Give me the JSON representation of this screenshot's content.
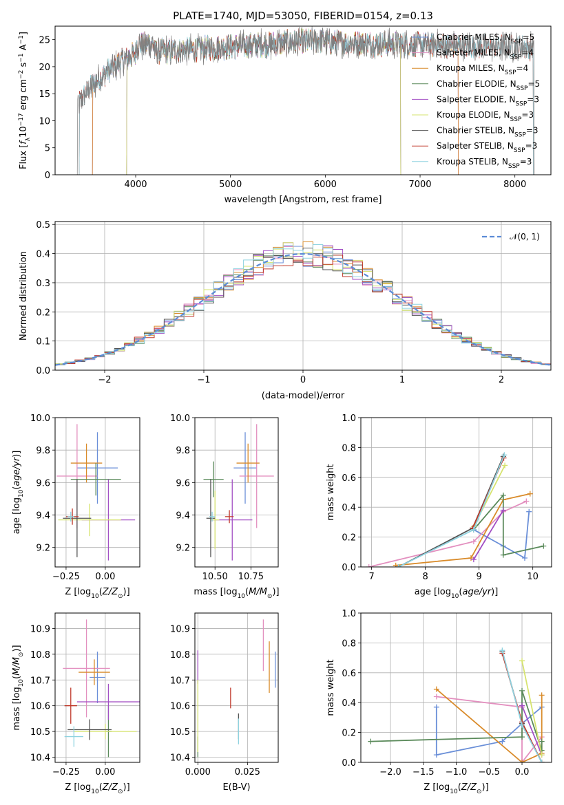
{
  "colors": {
    "Chabrier MILES": "#6a8fd8",
    "Salpeter MILES": "#e38fbf",
    "Kroupa MILES": "#d98b2a",
    "Chabrier ELODIE": "#5a8a5a",
    "Salpeter ELODIE": "#a24fc4",
    "Kroupa ELODIE": "#d6e36e",
    "Chabrier STELIB": "#555555",
    "Salpeter STELIB": "#c0392b",
    "Kroupa STELIB": "#8fd3e0",
    "gauss": "#5b8bd6"
  },
  "chart_data": [
    {
      "id": "spectrum",
      "type": "line",
      "title": "PLATE=1740, MJD=53050, FIBERID=0154, z=0.13",
      "xlabel": "wavelength [Angstrom, rest frame]",
      "ylabel": "Flux [fλ10⁻¹⁷ erg cm⁻² s⁻¹ A⁻¹]",
      "xlim": [
        3150,
        8380
      ],
      "ylim": [
        0,
        27.5
      ],
      "xticks": [
        4000,
        5000,
        6000,
        7000,
        8000
      ],
      "yticks": [
        0,
        5,
        10,
        15,
        20,
        25
      ],
      "legend_position": "upper right",
      "legend": [
        {
          "base": "Chabrier MILES, N",
          "sub": "SSP",
          "tail": "=5"
        },
        {
          "base": "Salpeter MILES, N",
          "sub": "SSP",
          "tail": "=4"
        },
        {
          "base": "Kroupa MILES, N",
          "sub": "SSP",
          "tail": "=4"
        },
        {
          "base": "Chabrier ELODIE, N",
          "sub": "SSP",
          "tail": "=5"
        },
        {
          "base": "Salpeter ELODIE, N",
          "sub": "SSP",
          "tail": "=3"
        },
        {
          "base": "Kroupa ELODIE, N",
          "sub": "SSP",
          "tail": "=3"
        },
        {
          "base": "Chabrier STELIB, N",
          "sub": "SSP",
          "tail": "=3"
        },
        {
          "base": "Salpeter STELIB, N",
          "sub": "SSP",
          "tail": "=3"
        },
        {
          "base": "Kroupa STELIB, N",
          "sub": "SSP",
          "tail": "=3"
        }
      ],
      "series": [
        {
          "name": "Chabrier MILES",
          "x_range": [
            3540,
            7410
          ]
        },
        {
          "name": "Salpeter MILES",
          "x_range": [
            3540,
            7410
          ]
        },
        {
          "name": "Kroupa MILES",
          "x_range": [
            3540,
            7410
          ]
        },
        {
          "name": "Chabrier ELODIE",
          "x_range": [
            3900,
            6800
          ]
        },
        {
          "name": "Salpeter ELODIE",
          "x_range": [
            3900,
            6800
          ]
        },
        {
          "name": "Kroupa ELODIE",
          "x_range": [
            3900,
            6800
          ]
        },
        {
          "name": "Chabrier STELIB",
          "x_range": [
            3400,
            8200
          ]
        },
        {
          "name": "Salpeter STELIB",
          "x_range": [
            3400,
            8200
          ]
        },
        {
          "name": "Kroupa STELIB",
          "x_range": [
            3400,
            8200
          ]
        },
        {
          "name": "data",
          "x_range": [
            3380,
            8210
          ]
        }
      ]
    },
    {
      "id": "residuals",
      "type": "histogram",
      "xlabel": "(data-model)/error",
      "ylabel": "Normed distribution",
      "xlim": [
        -2.5,
        2.5
      ],
      "ylim": [
        0,
        0.51
      ],
      "xticks": [
        -2,
        -1,
        0,
        1,
        2
      ],
      "xtick_labels": [
        "−2",
        "−1",
        "0",
        "1",
        "2"
      ],
      "yticks": [
        0.0,
        0.1,
        0.2,
        0.3,
        0.4,
        0.5
      ],
      "legend_position": "upper right",
      "legend_label": "𝒩(0, 1)",
      "bin_width": 0.1
    },
    {
      "id": "age_vs_Z",
      "type": "scatter_errorbar",
      "xlabel": "Z [log10(Z/Z☉)]",
      "ylabel": "age  [log10(age/yr)]",
      "xlim": [
        -0.32,
        0.22
      ],
      "ylim": [
        9.08,
        10.0
      ],
      "xticks": [
        -0.25,
        0.0
      ],
      "xtick_labels": [
        "−0.25",
        "0.00"
      ],
      "yticks": [
        9.2,
        9.4,
        9.6,
        9.8,
        10.0
      ],
      "points": [
        {
          "series": "Chabrier MILES",
          "x": -0.05,
          "y": 9.69,
          "xerr": 0.13,
          "yerr": 0.22
        },
        {
          "series": "Salpeter MILES",
          "x": -0.18,
          "y": 9.64,
          "xerr": 0.13,
          "yerr": 0.32
        },
        {
          "series": "Kroupa MILES",
          "x": -0.12,
          "y": 9.72,
          "xerr": 0.1,
          "yerr": 0.12
        },
        {
          "series": "Chabrier ELODIE",
          "x": -0.06,
          "y": 9.62,
          "xerr": 0.16,
          "yerr": 0.1
        },
        {
          "series": "Salpeter ELODIE",
          "x": 0.02,
          "y": 9.37,
          "xerr": 0.17,
          "yerr": 0.25
        },
        {
          "series": "Kroupa ELODIE",
          "x": -0.1,
          "y": 9.37,
          "xerr": 0.2,
          "yerr": 0.1
        },
        {
          "series": "Chabrier STELIB",
          "x": -0.18,
          "y": 9.38,
          "xerr": 0.09,
          "yerr": 0.24
        },
        {
          "series": "Salpeter STELIB",
          "x": -0.21,
          "y": 9.39,
          "xerr": 0.04,
          "yerr": 0.05
        },
        {
          "series": "Kroupa STELIB",
          "x": -0.22,
          "y": 9.39,
          "xerr": 0.02,
          "yerr": 0.03
        }
      ]
    },
    {
      "id": "age_vs_mass",
      "type": "scatter_errorbar",
      "xlabel": "mass [log10(M/M☉)]",
      "ylabel": "",
      "xlim": [
        10.36,
        10.94
      ],
      "ylim": [
        9.08,
        10.0
      ],
      "xticks": [
        10.5,
        10.75
      ],
      "xtick_labels": [
        "10.50",
        "10.75"
      ],
      "yticks": [
        9.2,
        9.4,
        9.6,
        9.8,
        10.0
      ],
      "points": [
        {
          "series": "Chabrier MILES",
          "x": 10.71,
          "y": 9.69,
          "xerr": 0.08,
          "yerr": 0.22
        },
        {
          "series": "Salpeter MILES",
          "x": 10.79,
          "y": 9.64,
          "xerr": 0.12,
          "yerr": 0.32
        },
        {
          "series": "Kroupa MILES",
          "x": 10.73,
          "y": 9.72,
          "xerr": 0.08,
          "yerr": 0.12
        },
        {
          "series": "Chabrier ELODIE",
          "x": 10.49,
          "y": 9.62,
          "xerr": 0.07,
          "yerr": 0.11
        },
        {
          "series": "Salpeter ELODIE",
          "x": 10.62,
          "y": 9.37,
          "xerr": 0.14,
          "yerr": 0.25
        },
        {
          "series": "Kroupa ELODIE",
          "x": 10.5,
          "y": 9.37,
          "xerr": 0.03,
          "yerr": 0.18
        },
        {
          "series": "Chabrier STELIB",
          "x": 10.47,
          "y": 9.38,
          "xerr": 0.03,
          "yerr": 0.24
        },
        {
          "series": "Salpeter STELIB",
          "x": 10.6,
          "y": 9.39,
          "xerr": 0.03,
          "yerr": 0.04
        },
        {
          "series": "Kroupa STELIB",
          "x": 10.48,
          "y": 9.39,
          "xerr": 0.02,
          "yerr": 0.03
        }
      ]
    },
    {
      "id": "weight_vs_age",
      "type": "line",
      "xlabel": "age  [log10(age/yr)]",
      "ylabel": "mass weight",
      "xlim": [
        6.8,
        10.35
      ],
      "ylim": [
        0,
        1.0
      ],
      "xticks": [
        7,
        8,
        9,
        10
      ],
      "yticks": [
        0.0,
        0.2,
        0.4,
        0.6,
        0.8,
        1.0
      ],
      "series": [
        {
          "name": "Chabrier MILES",
          "x": [
            8.9,
            9.45,
            9.85,
            9.93
          ],
          "y": [
            0.25,
            0.14,
            0.06,
            0.37
          ]
        },
        {
          "name": "Salpeter MILES",
          "x": [
            6.95,
            8.9,
            9.45,
            9.88
          ],
          "y": [
            0.0,
            0.17,
            0.37,
            0.44
          ]
        },
        {
          "name": "Kroupa MILES",
          "x": [
            7.45,
            8.85,
            9.45,
            9.95
          ],
          "y": [
            0.01,
            0.06,
            0.45,
            0.49
          ]
        },
        {
          "name": "Chabrier ELODIE",
          "x": [
            8.9,
            9.45,
            9.45,
            10.2
          ],
          "y": [
            0.25,
            0.48,
            0.08,
            0.14
          ]
        },
        {
          "name": "Salpeter ELODIE",
          "x": [
            8.9,
            9.45
          ],
          "y": [
            0.05,
            0.38
          ]
        },
        {
          "name": "Kroupa ELODIE",
          "x": [
            8.9,
            9.48
          ],
          "y": [
            0.27,
            0.68
          ]
        },
        {
          "name": "Chabrier STELIB",
          "x": [
            7.5,
            8.88,
            9.45
          ],
          "y": [
            0.0,
            0.26,
            0.74
          ]
        },
        {
          "name": "Salpeter STELIB",
          "x": [
            8.88,
            9.46
          ],
          "y": [
            0.26,
            0.73
          ]
        },
        {
          "name": "Kroupa STELIB",
          "x": [
            7.5,
            8.9,
            9.47
          ],
          "y": [
            0.0,
            0.25,
            0.75
          ]
        }
      ]
    },
    {
      "id": "mass_vs_Z",
      "type": "scatter_errorbar",
      "xlabel": "Z [log10(Z/Z☉)]",
      "ylabel": "mass [log10(M/M☉)]",
      "xlim": [
        -0.32,
        0.22
      ],
      "ylim": [
        10.38,
        10.96
      ],
      "xticks": [
        -0.25,
        0.0
      ],
      "xtick_labels": [
        "−0.25",
        "0.00"
      ],
      "yticks": [
        10.4,
        10.5,
        10.6,
        10.7,
        10.8,
        10.9
      ],
      "points": [
        {
          "series": "Chabrier MILES",
          "x": -0.05,
          "y": 10.71,
          "xerr": 0.05,
          "yerr": 0.1
        },
        {
          "series": "Salpeter MILES",
          "x": -0.12,
          "y": 10.745,
          "xerr": 0.15,
          "yerr": 0.19
        },
        {
          "series": "Kroupa MILES",
          "x": -0.07,
          "y": 10.73,
          "xerr": 0.1,
          "yerr": 0.05
        },
        {
          "series": "Chabrier ELODIE",
          "x": 0.02,
          "y": 10.5,
          "xerr": 0.02,
          "yerr": 0.1
        },
        {
          "series": "Salpeter ELODIE",
          "x": 0.02,
          "y": 10.615,
          "xerr": 0.2,
          "yerr": 0.07
        },
        {
          "series": "Kroupa ELODIE",
          "x": 0.0,
          "y": 10.5,
          "xerr": 0.2,
          "yerr": 0.03
        },
        {
          "series": "Chabrier STELIB",
          "x": -0.1,
          "y": 10.507,
          "xerr": 0.14,
          "yerr": 0.04
        },
        {
          "series": "Salpeter STELIB",
          "x": -0.22,
          "y": 10.6,
          "xerr": 0.04,
          "yerr": 0.07
        },
        {
          "series": "Kroupa STELIB",
          "x": -0.2,
          "y": 10.48,
          "xerr": 0.06,
          "yerr": 0.04
        }
      ]
    },
    {
      "id": "mass_vs_ebv",
      "type": "scatter_errorbar",
      "xlabel": "E(B-V)",
      "ylabel": "",
      "xlim": [
        -0.0015,
        0.0405
      ],
      "ylim": [
        10.38,
        10.96
      ],
      "xticks": [
        0.0,
        0.025
      ],
      "xtick_labels": [
        "0.000",
        "0.025"
      ],
      "yticks": [
        10.4,
        10.5,
        10.6,
        10.7,
        10.8,
        10.9
      ],
      "points": [
        {
          "series": "Chabrier MILES",
          "x": 0.039,
          "y": 10.74,
          "yerr": 0.07
        },
        {
          "series": "Salpeter MILES",
          "x": 0.033,
          "y": 10.835,
          "yerr": 0.1
        },
        {
          "series": "Kroupa MILES",
          "x": 0.036,
          "y": 10.75,
          "yerr": 0.1
        },
        {
          "series": "Chabrier ELODIE",
          "x": 0.0,
          "y": 10.44,
          "yerr": 0.04
        },
        {
          "series": "Salpeter ELODIE",
          "x": 0.0,
          "y": 10.75,
          "yerr": 0.065
        },
        {
          "series": "Kroupa ELODIE",
          "x": 0.0,
          "y": 10.56,
          "yerr": 0.14
        },
        {
          "series": "Chabrier STELIB",
          "x": 0.0205,
          "y": 10.52,
          "yerr": 0.05
        },
        {
          "series": "Salpeter STELIB",
          "x": 0.0165,
          "y": 10.63,
          "yerr": 0.04
        },
        {
          "series": "Kroupa STELIB",
          "x": 0.0205,
          "y": 10.5,
          "yerr": 0.05
        }
      ]
    },
    {
      "id": "weight_vs_Z",
      "type": "line",
      "xlabel": "Z [log10(Z/Z☉)]",
      "ylabel": "mass weight",
      "xlim": [
        -2.45,
        0.45
      ],
      "ylim": [
        0,
        1.0
      ],
      "xticks": [
        -2.0,
        -1.5,
        -1.0,
        -0.5,
        0.0
      ],
      "xtick_labels": [
        "−2.0",
        "−1.5",
        "−1.0",
        "−0.5",
        "0.0"
      ],
      "yticks": [
        0.0,
        0.2,
        0.4,
        0.6,
        0.8,
        1.0
      ],
      "series": [
        {
          "name": "Chabrier MILES",
          "x": [
            -1.3,
            -1.3,
            -0.3,
            0.0,
            0.3
          ],
          "y": [
            0.37,
            0.05,
            0.14,
            0.26,
            0.37
          ]
        },
        {
          "name": "Salpeter MILES",
          "x": [
            -1.3,
            0.0,
            0.0,
            0.3
          ],
          "y": [
            0.44,
            0.37,
            0.0,
            0.17
          ]
        },
        {
          "name": "Kroupa MILES",
          "x": [
            -1.3,
            0.0,
            0.3,
            0.3
          ],
          "y": [
            0.49,
            0.0,
            0.06,
            0.45
          ]
        },
        {
          "name": "Chabrier ELODIE",
          "x": [
            -2.3,
            0.0,
            0.0,
            0.3,
            0.3
          ],
          "y": [
            0.14,
            0.17,
            0.48,
            0.08,
            0.14
          ]
        },
        {
          "name": "Salpeter ELODIE",
          "x": [
            0.0,
            0.3
          ],
          "y": [
            0.38,
            0.05
          ]
        },
        {
          "name": "Kroupa ELODIE",
          "x": [
            0.0,
            0.3
          ],
          "y": [
            0.68,
            0.05
          ]
        },
        {
          "name": "Chabrier STELIB",
          "x": [
            -0.3,
            0.0,
            0.3
          ],
          "y": [
            0.74,
            0.26,
            0.0
          ]
        },
        {
          "name": "Salpeter STELIB",
          "x": [
            -0.3,
            0.0,
            0.3
          ],
          "y": [
            0.73,
            0.27,
            0.0
          ]
        },
        {
          "name": "Kroupa STELIB",
          "x": [
            -0.3,
            0.0,
            0.3
          ],
          "y": [
            0.75,
            0.25,
            0.0
          ]
        }
      ]
    }
  ]
}
